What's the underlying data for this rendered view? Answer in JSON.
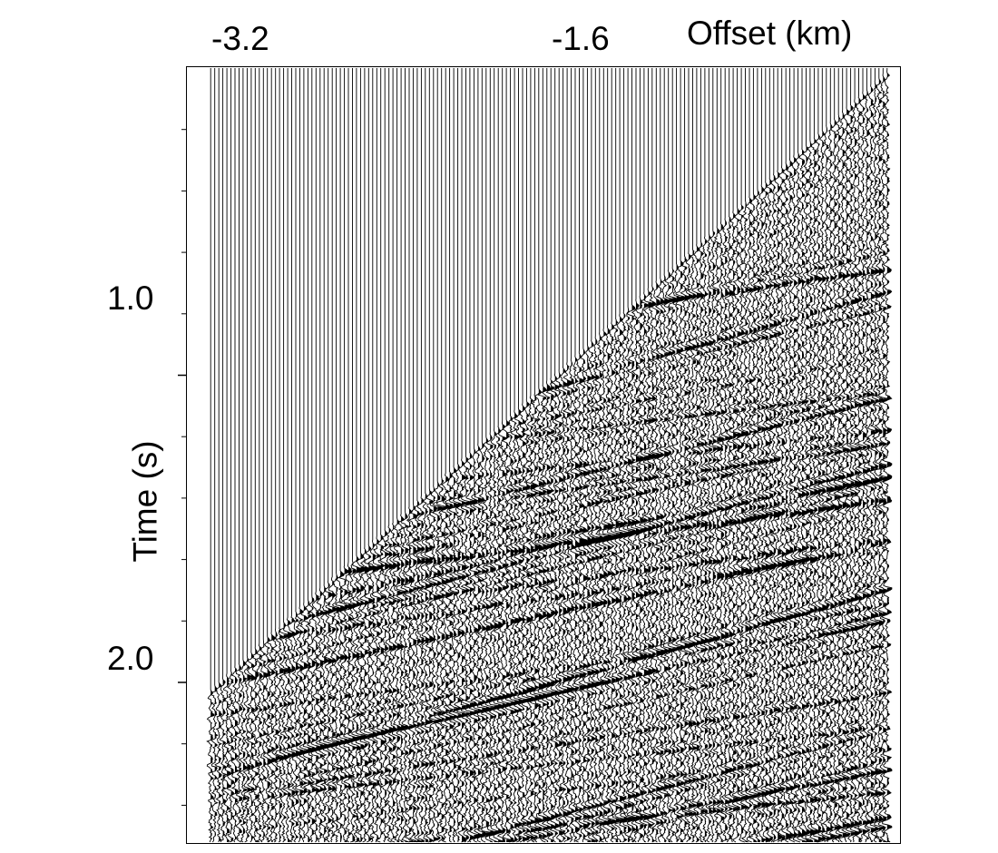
{
  "chart_data": {
    "type": "seismic_wiggle_gather",
    "title": "",
    "xlabel": "Offset (km)",
    "ylabel": "Time (s)",
    "x_ticks": [
      {
        "value": -3.2,
        "label": "-3.2"
      },
      {
        "value": -1.6,
        "label": "-1.6"
      }
    ],
    "y_ticks": [
      {
        "value": 1.0,
        "label": "1.0"
      },
      {
        "value": 2.0,
        "label": "2.0"
      }
    ],
    "x_range_km": [
      -3.63,
      0.0
    ],
    "time_range_s": [
      0.0,
      2.52
    ],
    "first_break": [
      {
        "offset_km": -3.55,
        "time_s": 1.98
      },
      {
        "offset_km": 0.0,
        "time_s": 0.0
      }
    ],
    "trace_fill": "positive lobes shaded black",
    "colors": {
      "traces": "#000000",
      "background": "#ffffff"
    }
  }
}
